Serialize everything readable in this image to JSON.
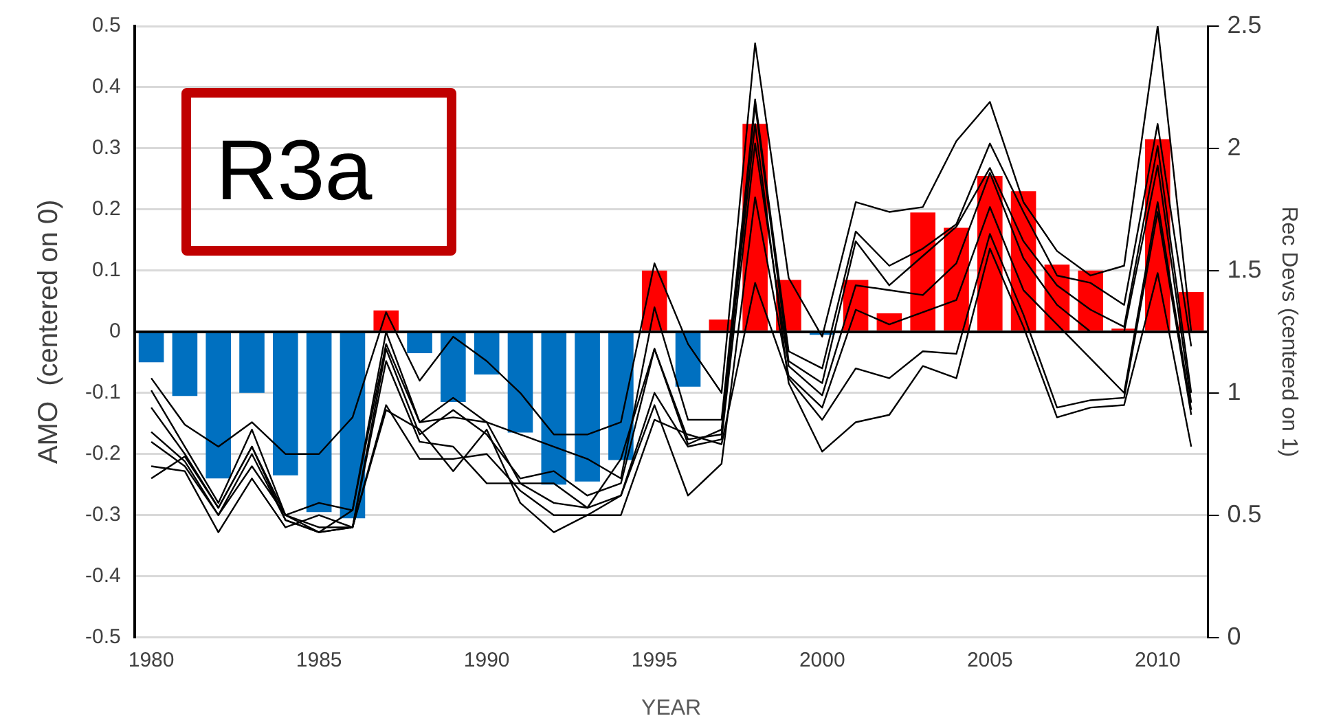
{
  "chart_data": {
    "type": "bar",
    "xlabel": "YEAR",
    "ylabel": "AMO  (centered on 0)",
    "y2label": "Rec Devs (centered on 1)",
    "annotations": [
      "R3a"
    ],
    "x": [
      1980,
      1981,
      1982,
      1983,
      1984,
      1985,
      1986,
      1987,
      1988,
      1989,
      1990,
      1991,
      1992,
      1993,
      1994,
      1995,
      1996,
      1997,
      1998,
      1999,
      2000,
      2001,
      2002,
      2003,
      2004,
      2005,
      2006,
      2007,
      2008,
      2009,
      2010,
      2011
    ],
    "xlim": [
      1979.5,
      2011.5
    ],
    "xticks": [
      1980,
      1985,
      1990,
      1995,
      2000,
      2005,
      2010
    ],
    "ylim": [
      -0.5,
      0.5
    ],
    "yticks": [
      -0.5,
      -0.4,
      -0.3,
      -0.2,
      -0.1,
      0,
      0.1,
      0.2,
      0.3,
      0.4,
      0.5
    ],
    "y2lim": [
      0,
      2.5
    ],
    "y2ticks": [
      0,
      0.5,
      1,
      1.5,
      2,
      2.5
    ],
    "grid": "y",
    "legend": false,
    "series": [
      {
        "colors": [
          "#0070c0",
          "#0070c0",
          "#0070c0",
          "#0070c0",
          "#0070c0",
          "#0070c0",
          "#0070c0",
          "#ff0000",
          "#0070c0",
          "#0070c0",
          "#0070c0",
          "#0070c0",
          "#0070c0",
          "#0070c0",
          "#0070c0",
          "#ff0000",
          "#0070c0",
          "#ff0000",
          "#ff0000",
          "#ff0000",
          "#0070c0",
          "#ff0000",
          "#ff0000",
          "#ff0000",
          "#ff0000",
          "#ff0000",
          "#ff0000",
          "#ff0000",
          "#ff0000",
          "#ff0000",
          "#ff0000",
          "#ff0000"
        ],
        "values": [
          -0.05,
          -0.105,
          -0.24,
          -0.1,
          -0.235,
          -0.295,
          -0.305,
          0.035,
          -0.035,
          -0.115,
          -0.07,
          -0.165,
          -0.25,
          -0.245,
          -0.21,
          0.1,
          -0.09,
          0.02,
          0.34,
          0.085,
          -0.005,
          0.085,
          0.03,
          0.195,
          0.17,
          0.255,
          0.23,
          0.11,
          0.1,
          0.005,
          0.315,
          0.065
        ]
      },
      {
        "type": "line",
        "axis": "y2",
        "color": "#000000",
        "values": [
          1.06,
          0.87,
          0.78,
          0.88,
          0.75,
          0.75,
          0.9,
          1.33,
          1.05,
          1.23,
          1.13,
          1.0,
          0.83,
          0.83,
          0.88,
          1.53,
          1.2,
          1.0,
          2.43,
          1.47,
          1.23,
          1.78,
          1.74,
          1.76,
          2.03,
          2.19,
          1.78,
          1.58,
          1.48,
          1.52,
          2.5,
          1.25
        ]
      },
      {
        "type": "line",
        "axis": "y2",
        "color": "#000000",
        "values": [
          1.01,
          0.78,
          0.55,
          0.85,
          0.5,
          0.55,
          0.52,
          1.2,
          0.88,
          0.98,
          0.88,
          0.83,
          0.78,
          0.73,
          0.65,
          1.35,
          0.89,
          0.89,
          2.2,
          1.17,
          1.1,
          1.66,
          1.52,
          1.59,
          1.69,
          2.02,
          1.74,
          1.48,
          1.45,
          1.36,
          2.1,
          1.19
        ]
      },
      {
        "type": "line",
        "axis": "y2",
        "color": "#000000",
        "values": [
          0.94,
          0.75,
          0.53,
          0.78,
          0.48,
          0.43,
          0.45,
          1.18,
          0.83,
          0.93,
          0.83,
          0.65,
          0.68,
          0.58,
          0.63,
          1.18,
          0.81,
          0.83,
          2.18,
          1.13,
          1.04,
          1.62,
          1.44,
          1.56,
          1.68,
          1.92,
          1.62,
          1.44,
          1.34,
          1.27,
          2.01,
          1.0
        ]
      },
      {
        "type": "line",
        "axis": "y2",
        "color": "#000000",
        "values": [
          0.84,
          0.72,
          0.5,
          0.75,
          0.48,
          0.43,
          0.45,
          1.13,
          0.8,
          0.78,
          0.63,
          0.63,
          0.55,
          0.53,
          0.58,
          1.0,
          0.78,
          0.81,
          2.02,
          1.11,
          0.99,
          1.44,
          1.42,
          1.4,
          1.53,
          1.9,
          1.55,
          1.36,
          1.25,
          1.25,
          1.93,
          0.96
        ]
      },
      {
        "type": "line",
        "axis": "y2",
        "color": "#000000",
        "values": [
          0.8,
          0.7,
          0.5,
          0.7,
          0.5,
          0.45,
          0.45,
          0.95,
          0.73,
          0.73,
          0.75,
          0.6,
          0.5,
          0.5,
          0.58,
          0.95,
          0.58,
          0.71,
          1.8,
          1.07,
          0.94,
          1.34,
          1.28,
          1.33,
          1.38,
          1.76,
          1.42,
          1.28,
          1.14,
          1.0,
          1.78,
          0.93
        ]
      },
      {
        "type": "line",
        "axis": "y2",
        "color": "#000000",
        "values": [
          0.7,
          0.68,
          0.43,
          0.65,
          0.45,
          0.5,
          0.45,
          0.93,
          0.85,
          0.68,
          0.85,
          0.55,
          0.43,
          0.5,
          0.5,
          0.89,
          0.83,
          0.79,
          1.45,
          1.06,
          0.89,
          1.1,
          1.06,
          1.17,
          1.16,
          1.65,
          1.32,
          0.94,
          0.97,
          0.98,
          1.74,
          0.91
        ]
      },
      {
        "type": "line",
        "axis": "y2",
        "color": "#000000",
        "values": [
          0.65,
          0.74,
          0.53,
          0.78,
          0.5,
          0.43,
          0.52,
          1.25,
          0.88,
          0.9,
          0.88,
          0.63,
          0.63,
          0.53,
          0.73,
          1.18,
          0.79,
          0.85,
          2.1,
          1.04,
          0.76,
          0.88,
          0.91,
          1.11,
          1.06,
          1.59,
          1.27,
          0.9,
          0.94,
          0.95,
          1.49,
          0.78
        ]
      }
    ]
  }
}
